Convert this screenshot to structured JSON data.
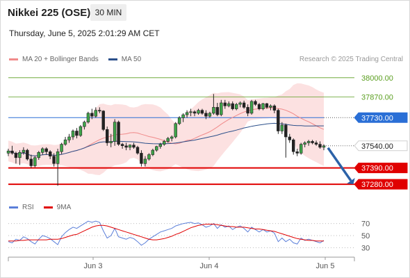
{
  "header": {
    "title": "Nikkei 225 (OSE)",
    "interval": "30 MIN",
    "datetime": "Thursday, June 5, 2025 2:01:29 AM CET"
  },
  "legend": {
    "ma20_label": "MA 20 + Bollinger Bands",
    "ma20_color": "#f08a8a",
    "ma50_label": "MA 50",
    "ma50_color": "#2b4f8a",
    "credit": "Research © 2025 Trading Central"
  },
  "rsi_legend": {
    "rsi_label": "RSI",
    "rsi_color": "#5b7fd9",
    "ma9_label": "9MA",
    "ma9_color": "#e00000"
  },
  "chart_data": {
    "type": "candlestick",
    "x_labels": [
      "Jun 3",
      "Jun 4",
      "Jun 5"
    ],
    "ylim": [
      37210,
      38065
    ],
    "price_levels": [
      {
        "value": 38000,
        "label": "38000.00",
        "kind": "resistance",
        "color": "#5a9e1f"
      },
      {
        "value": 37870,
        "label": "37870.00",
        "kind": "resistance",
        "color": "#5a9e1f"
      },
      {
        "value": 37730,
        "label": "37730.00",
        "kind": "pivot",
        "color": "#2a6fd6"
      },
      {
        "value": 37540,
        "label": "37540.00",
        "kind": "last",
        "color": "#1a1a1a"
      },
      {
        "value": 37390,
        "label": "37390.00",
        "kind": "support",
        "color": "#e00000"
      },
      {
        "value": 37280,
        "label": "37280.00",
        "kind": "support",
        "color": "#e00000"
      }
    ],
    "candles": [
      [
        37490,
        37520,
        37470,
        37505
      ],
      [
        37505,
        37540,
        37480,
        37490
      ],
      [
        37490,
        37500,
        37420,
        37460
      ],
      [
        37460,
        37510,
        37410,
        37495
      ],
      [
        37495,
        37530,
        37480,
        37510
      ],
      [
        37510,
        37520,
        37440,
        37450
      ],
      [
        37450,
        37480,
        37390,
        37405
      ],
      [
        37405,
        37470,
        37395,
        37460
      ],
      [
        37460,
        37505,
        37445,
        37495
      ],
      [
        37495,
        37530,
        37480,
        37520
      ],
      [
        37520,
        37530,
        37480,
        37500
      ],
      [
        37500,
        37510,
        37450,
        37470
      ],
      [
        37470,
        37490,
        37400,
        37420
      ],
      [
        37420,
        37520,
        37270,
        37500
      ],
      [
        37500,
        37560,
        37485,
        37550
      ],
      [
        37550,
        37600,
        37540,
        37580
      ],
      [
        37580,
        37620,
        37560,
        37600
      ],
      [
        37600,
        37650,
        37580,
        37640
      ],
      [
        37640,
        37660,
        37590,
        37610
      ],
      [
        37610,
        37680,
        37600,
        37670
      ],
      [
        37670,
        37710,
        37650,
        37700
      ],
      [
        37700,
        37770,
        37690,
        37760
      ],
      [
        37760,
        37790,
        37720,
        37740
      ],
      [
        37740,
        37800,
        37730,
        37780
      ],
      [
        37780,
        37800,
        37760,
        37775
      ],
      [
        37775,
        37780,
        37640,
        37650
      ],
      [
        37650,
        37670,
        37540,
        37560
      ],
      [
        37560,
        37620,
        37530,
        37570
      ],
      [
        37570,
        37720,
        37540,
        37700
      ],
      [
        37700,
        37710,
        37540,
        37550
      ],
      [
        37550,
        37560,
        37520,
        37540
      ],
      [
        37540,
        37560,
        37510,
        37530
      ],
      [
        37530,
        37550,
        37510,
        37545
      ],
      [
        37545,
        37560,
        37520,
        37530
      ],
      [
        37530,
        37540,
        37480,
        37490
      ],
      [
        37490,
        37510,
        37400,
        37420
      ],
      [
        37420,
        37470,
        37400,
        37450
      ],
      [
        37450,
        37490,
        37440,
        37480
      ],
      [
        37480,
        37520,
        37470,
        37510
      ],
      [
        37510,
        37540,
        37500,
        37535
      ],
      [
        37535,
        37560,
        37520,
        37550
      ],
      [
        37550,
        37580,
        37540,
        37570
      ],
      [
        37570,
        37600,
        37560,
        37590
      ],
      [
        37590,
        37610,
        37570,
        37600
      ],
      [
        37600,
        37700,
        37590,
        37690
      ],
      [
        37690,
        37740,
        37680,
        37730
      ],
      [
        37730,
        37760,
        37700,
        37750
      ],
      [
        37750,
        37780,
        37730,
        37765
      ],
      [
        37765,
        37790,
        37740,
        37770
      ],
      [
        37770,
        37780,
        37740,
        37760
      ],
      [
        37760,
        37790,
        37750,
        37780
      ],
      [
        37780,
        37790,
        37750,
        37760
      ],
      [
        37760,
        37780,
        37720,
        37740
      ],
      [
        37740,
        37770,
        37730,
        37760
      ],
      [
        37760,
        37890,
        37750,
        37800
      ],
      [
        37800,
        37830,
        37740,
        37750
      ],
      [
        37750,
        37850,
        37740,
        37830
      ],
      [
        37830,
        37850,
        37790,
        37810
      ],
      [
        37810,
        37840,
        37800,
        37825
      ],
      [
        37825,
        37840,
        37780,
        37790
      ],
      [
        37790,
        37830,
        37780,
        37820
      ],
      [
        37820,
        37840,
        37800,
        37830
      ],
      [
        37830,
        37845,
        37790,
        37800
      ],
      [
        37800,
        37820,
        37740,
        37760
      ],
      [
        37760,
        37850,
        37750,
        37840
      ],
      [
        37840,
        37850,
        37810,
        37820
      ],
      [
        37820,
        37830,
        37780,
        37790
      ],
      [
        37790,
        37830,
        37780,
        37825
      ],
      [
        37825,
        37830,
        37790,
        37800
      ],
      [
        37800,
        37820,
        37780,
        37810
      ],
      [
        37810,
        37820,
        37760,
        37780
      ],
      [
        37780,
        37790,
        37620,
        37640
      ],
      [
        37640,
        37700,
        37620,
        37680
      ],
      [
        37680,
        37690,
        37460,
        37600
      ],
      [
        37600,
        37620,
        37560,
        37580
      ],
      [
        37580,
        37590,
        37480,
        37500
      ],
      [
        37500,
        37520,
        37470,
        37490
      ],
      [
        37490,
        37560,
        37480,
        37550
      ],
      [
        37550,
        37570,
        37530,
        37560
      ],
      [
        37560,
        37580,
        37540,
        37570
      ],
      [
        37570,
        37580,
        37550,
        37560
      ],
      [
        37560,
        37575,
        37540,
        37550
      ],
      [
        37550,
        37570,
        37520,
        37530
      ],
      [
        37530,
        37550,
        37510,
        37540
      ]
    ],
    "forecast_arrow": {
      "from": 37540,
      "to": 37285
    },
    "rsi": {
      "ylim": [
        20,
        80
      ],
      "ticks": [
        70,
        50,
        30
      ],
      "values": [
        40,
        38,
        44,
        42,
        48,
        45,
        40,
        36,
        44,
        50,
        48,
        45,
        40,
        35,
        48,
        55,
        60,
        64,
        62,
        66,
        70,
        74,
        72,
        74,
        72,
        58,
        46,
        50,
        62,
        48,
        46,
        44,
        47,
        45,
        40,
        34,
        38,
        44,
        48,
        52,
        56,
        58,
        60,
        62,
        66,
        68,
        70,
        71,
        72,
        70,
        71,
        68,
        64,
        66,
        70,
        62,
        68,
        64,
        66,
        60,
        64,
        66,
        62,
        56,
        64,
        60,
        56,
        60,
        56,
        58,
        54,
        40,
        46,
        40,
        44,
        38,
        36,
        46,
        42,
        44,
        42,
        40,
        38,
        42
      ],
      "ma9": [
        41,
        41,
        41,
        42,
        42,
        43,
        43,
        43,
        43,
        43,
        43,
        44,
        44,
        44,
        45,
        47,
        49,
        51,
        52,
        55,
        58,
        61,
        64,
        66,
        67,
        67,
        66,
        64,
        62,
        60,
        58,
        56,
        54,
        52,
        50,
        48,
        46,
        44,
        43,
        43,
        44,
        45,
        47,
        49,
        52,
        54,
        57,
        60,
        63,
        65,
        67,
        68,
        69,
        69,
        69,
        68,
        67,
        66,
        65,
        65,
        64,
        64,
        64,
        63,
        62,
        61,
        61,
        60,
        59,
        58,
        57,
        55,
        53,
        51,
        49,
        47,
        45,
        44,
        43,
        42,
        42,
        41,
        41,
        41
      ]
    }
  }
}
